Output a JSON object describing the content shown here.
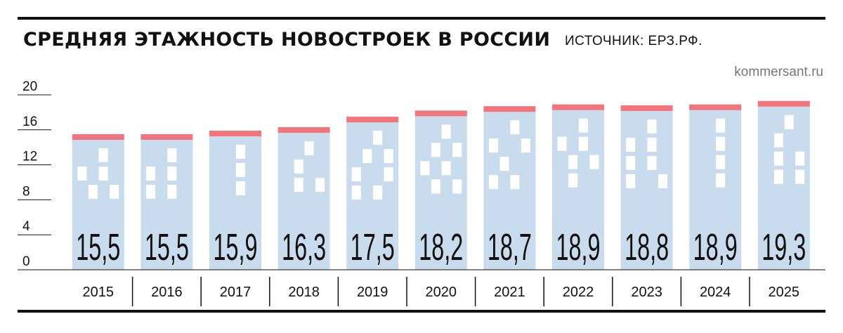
{
  "header": {
    "title": "СРЕДНЯЯ ЭТАЖНОСТЬ НОВОСТРОЕК В РОССИИ",
    "source": "ИСТОЧНИК: ЕРЗ.РФ.",
    "credit": "kommersant.ru"
  },
  "chart_data": {
    "type": "bar",
    "title": "СРЕДНЯЯ ЭТАЖНОСТЬ НОВОСТРОЕК В РОССИИ",
    "xlabel": "",
    "ylabel": "",
    "categories": [
      "2015",
      "2016",
      "2017",
      "2018",
      "2019",
      "2020",
      "2021",
      "2022",
      "2023",
      "2024",
      "2025"
    ],
    "values": [
      15.5,
      15.5,
      15.9,
      16.3,
      17.5,
      18.2,
      18.7,
      18.9,
      18.8,
      18.9,
      19.3
    ],
    "value_labels": [
      "15,5",
      "15,5",
      "15,9",
      "16,3",
      "17,5",
      "18,2",
      "18,7",
      "18,9",
      "18,8",
      "18,9",
      "19,3"
    ],
    "yticks": [
      0,
      4,
      8,
      12,
      16,
      20
    ],
    "ylim": [
      0,
      20
    ],
    "grid": false,
    "legend": "none",
    "colors": {
      "bar": "#c8dced",
      "roof": "#f2757b",
      "window": "#ffffff",
      "text": "#111111",
      "credit": "#777777"
    }
  }
}
